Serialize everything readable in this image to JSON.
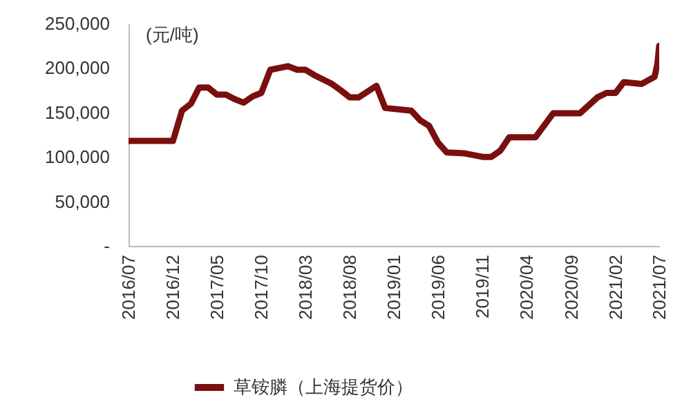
{
  "chart_data": {
    "type": "line",
    "ylabel": "(元/吨)",
    "x": [
      "2016-07",
      "2016-12",
      "2017-01",
      "2017-02",
      "2017-03",
      "2017-04",
      "2017-05",
      "2017-06",
      "2017-07",
      "2017-08",
      "2017-09",
      "2017-10",
      "2017-11",
      "2018-01",
      "2018-02",
      "2018-03",
      "2018-04",
      "2018-06",
      "2018-07",
      "2018-08",
      "2018-09",
      "2018-11",
      "2018-12",
      "2019-02",
      "2019-03",
      "2019-04",
      "2019-05",
      "2019-06",
      "2019-07",
      "2019-09",
      "2019-11",
      "2019-12",
      "2020-01",
      "2020-02",
      "2020-04",
      "2020-05",
      "2020-07",
      "2020-10",
      "2020-12",
      "2021-01",
      "2021-02",
      "2021-03",
      "2021-05",
      "2021-06-15",
      "2021-06-25",
      "2021-07"
    ],
    "series": [
      {
        "name": "草铵膦（上海提货价）",
        "color": "#7a0f0f",
        "values": [
          118000,
          118000,
          152000,
          160000,
          178000,
          178000,
          170000,
          170000,
          165000,
          161000,
          168000,
          172000,
          198000,
          202000,
          198000,
          198000,
          192000,
          182000,
          175000,
          167000,
          167000,
          180000,
          155000,
          153000,
          152000,
          141000,
          135000,
          116000,
          105000,
          104000,
          100000,
          100000,
          107000,
          122000,
          122000,
          122000,
          149000,
          149000,
          167000,
          172000,
          172000,
          184000,
          182000,
          190000,
          205000,
          225000
        ]
      }
    ],
    "xlim": [
      "2016-07",
      "2021-07"
    ],
    "xticks": [
      {
        "value": "2016-07",
        "label": "2016/07"
      },
      {
        "value": "2016-12",
        "label": "2016/12"
      },
      {
        "value": "2017-05",
        "label": "2017/05"
      },
      {
        "value": "2017-10",
        "label": "2017/10"
      },
      {
        "value": "2018-03",
        "label": "2018/03"
      },
      {
        "value": "2018-08",
        "label": "2018/08"
      },
      {
        "value": "2019-01",
        "label": "2019/01"
      },
      {
        "value": "2019-06",
        "label": "2019/06"
      },
      {
        "value": "2019-11",
        "label": "2019/11"
      },
      {
        "value": "2020-04",
        "label": "2020/04"
      },
      {
        "value": "2020-09",
        "label": "2020/09"
      },
      {
        "value": "2021-02",
        "label": "2021/02"
      },
      {
        "value": "2021-07",
        "label": "2021/07"
      }
    ],
    "ylim": [
      0,
      250000
    ],
    "yticks": [
      {
        "value": 0,
        "label": "-"
      },
      {
        "value": 50000,
        "label": "50,000"
      },
      {
        "value": 100000,
        "label": "100,000"
      },
      {
        "value": 150000,
        "label": "150,000"
      },
      {
        "value": 200000,
        "label": "200,000"
      },
      {
        "value": 250000,
        "label": "250,000"
      }
    ],
    "grid": false,
    "legend": "bottom",
    "line_style": "solid",
    "marker": "none"
  }
}
